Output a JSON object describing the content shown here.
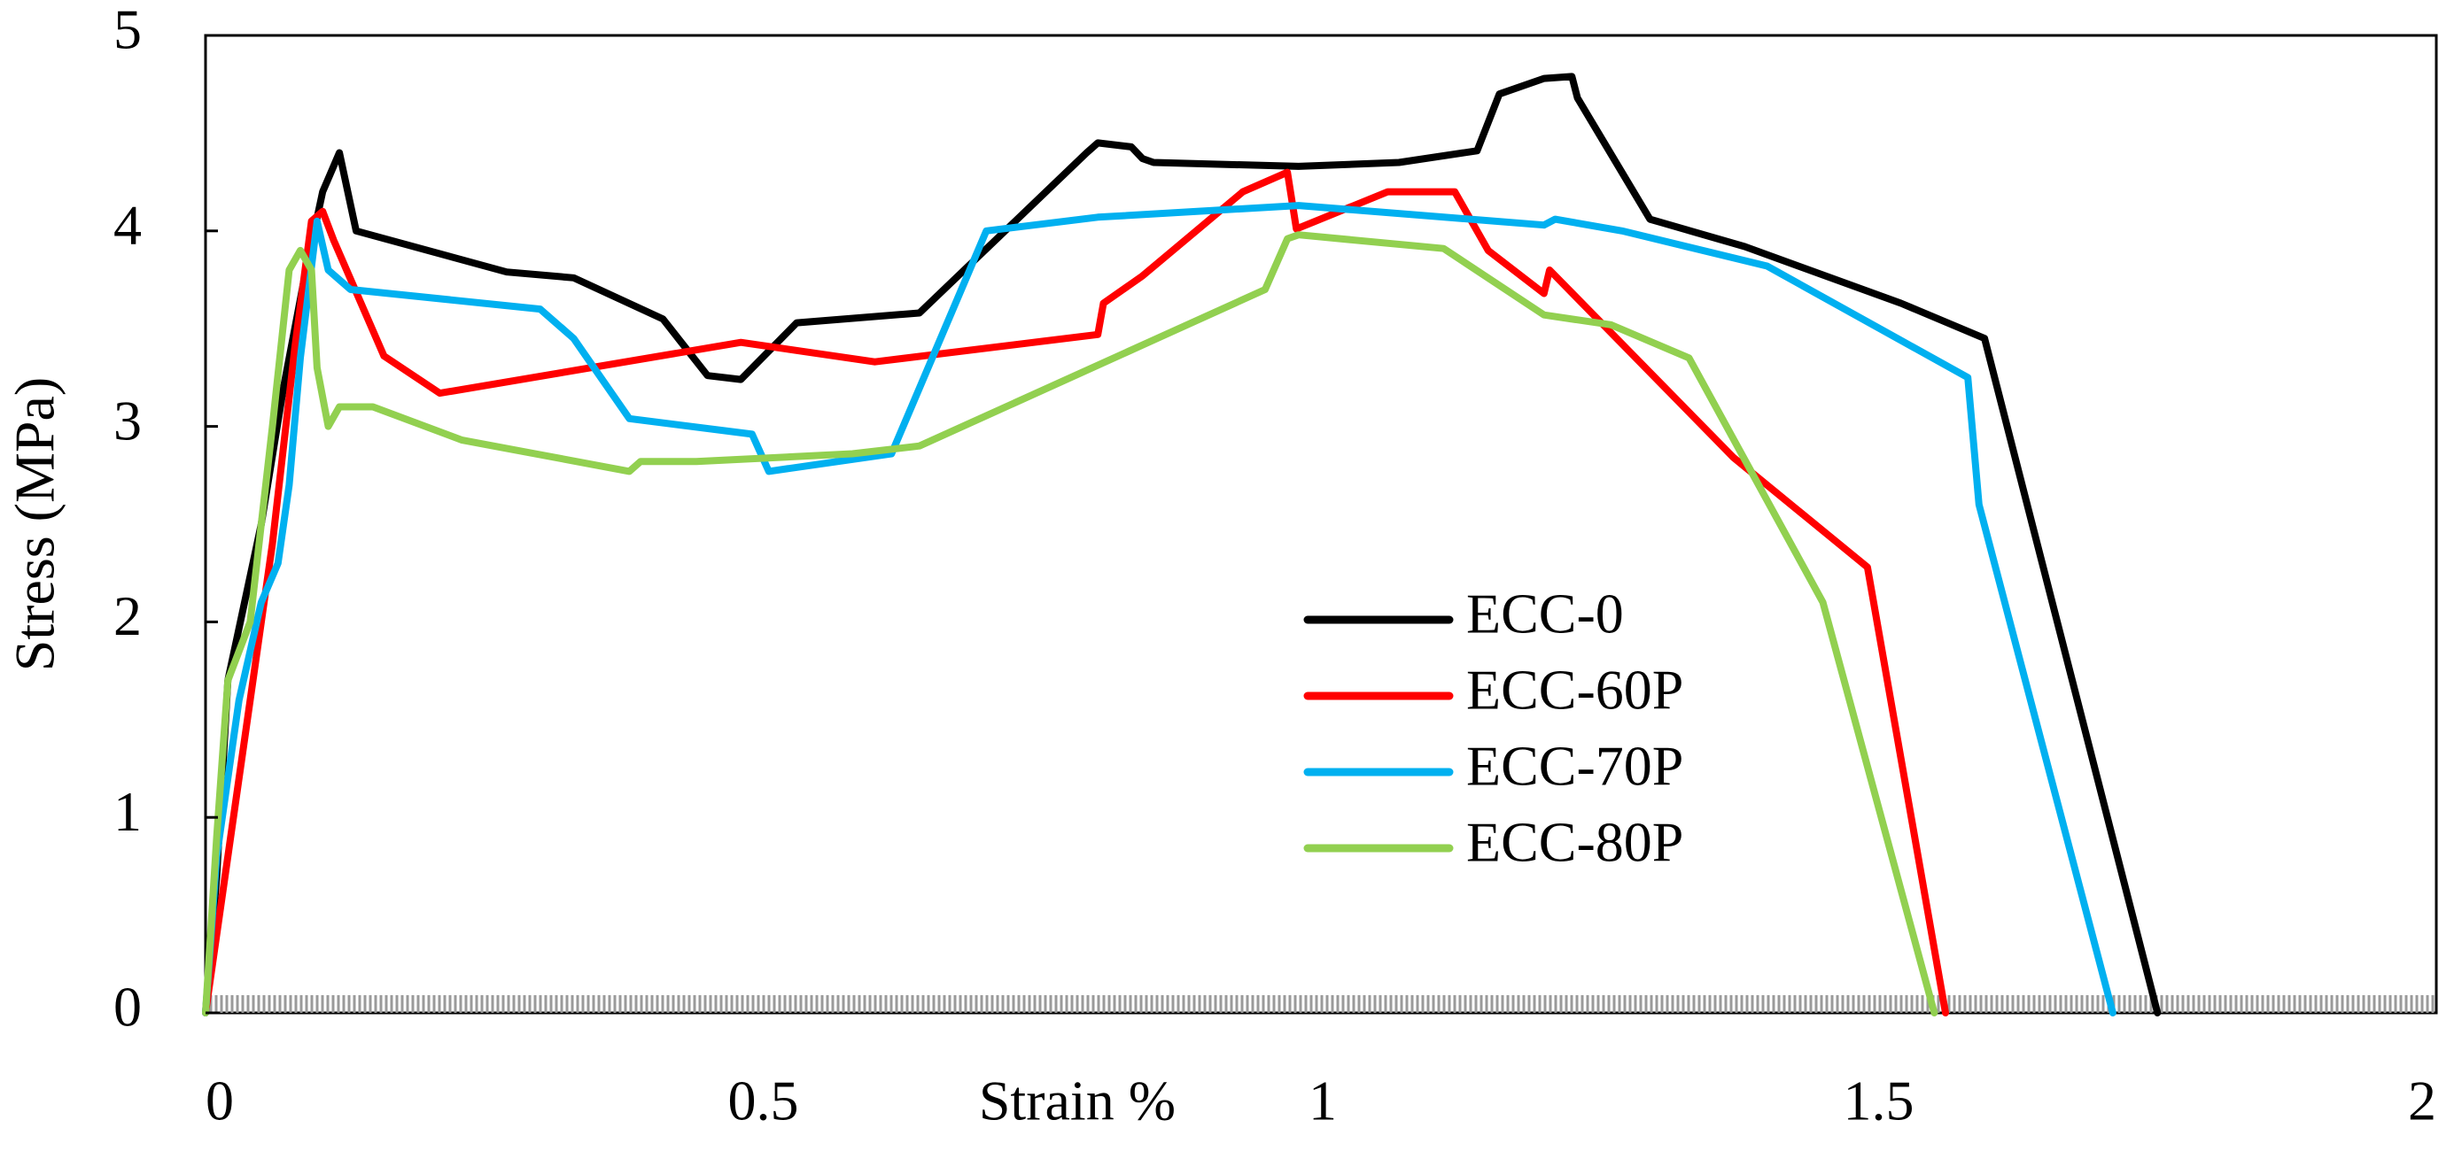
{
  "chart_data": {
    "type": "line",
    "title": "",
    "xlabel": "Strain %",
    "ylabel": "Stress (MPa)",
    "xlim": [
      0,
      2
    ],
    "ylim": [
      0,
      5
    ],
    "x_ticks": [
      "0",
      "0.5",
      "1",
      "1.5",
      "2"
    ],
    "y_ticks": [
      "0",
      "1",
      "2",
      "3",
      "4",
      "5"
    ],
    "grid": false,
    "legend": "center-right",
    "series": [
      {
        "name": "ECC-0",
        "color": "#000000",
        "points": [
          [
            0,
            0
          ],
          [
            0.01,
            0.7
          ],
          [
            0.02,
            1.7
          ],
          [
            0.05,
            2.5
          ],
          [
            0.07,
            3.2
          ],
          [
            0.09,
            3.8
          ],
          [
            0.105,
            4.2
          ],
          [
            0.12,
            4.4
          ],
          [
            0.135,
            4.0
          ],
          [
            0.27,
            3.79
          ],
          [
            0.33,
            3.76
          ],
          [
            0.41,
            3.55
          ],
          [
            0.45,
            3.26
          ],
          [
            0.48,
            3.24
          ],
          [
            0.53,
            3.53
          ],
          [
            0.64,
            3.58
          ],
          [
            0.79,
            4.4
          ],
          [
            0.8,
            4.45
          ],
          [
            0.83,
            4.43
          ],
          [
            0.84,
            4.37
          ],
          [
            0.85,
            4.35
          ],
          [
            0.98,
            4.33
          ],
          [
            1.07,
            4.35
          ],
          [
            1.14,
            4.41
          ],
          [
            1.16,
            4.7
          ],
          [
            1.2,
            4.78
          ],
          [
            1.225,
            4.79
          ],
          [
            1.23,
            4.68
          ],
          [
            1.295,
            4.06
          ],
          [
            1.38,
            3.92
          ],
          [
            1.52,
            3.63
          ],
          [
            1.595,
            3.45
          ],
          [
            1.75,
            0
          ]
        ]
      },
      {
        "name": "ECC-60P",
        "color": "#ff0000",
        "points": [
          [
            0,
            0
          ],
          [
            0.02,
            0.8
          ],
          [
            0.04,
            1.6
          ],
          [
            0.06,
            2.4
          ],
          [
            0.08,
            3.4
          ],
          [
            0.095,
            4.05
          ],
          [
            0.105,
            4.1
          ],
          [
            0.115,
            3.95
          ],
          [
            0.16,
            3.36
          ],
          [
            0.21,
            3.17
          ],
          [
            0.48,
            3.43
          ],
          [
            0.6,
            3.33
          ],
          [
            0.8,
            3.47
          ],
          [
            0.805,
            3.63
          ],
          [
            0.84,
            3.77
          ],
          [
            0.93,
            4.2
          ],
          [
            0.97,
            4.3
          ],
          [
            0.978,
            4.01
          ],
          [
            1.06,
            4.2
          ],
          [
            1.12,
            4.2
          ],
          [
            1.15,
            3.9
          ],
          [
            1.2,
            3.68
          ],
          [
            1.205,
            3.8
          ],
          [
            1.37,
            2.84
          ],
          [
            1.49,
            2.28
          ],
          [
            1.56,
            0
          ]
        ]
      },
      {
        "name": "ECC-70P",
        "color": "#00b0f0",
        "points": [
          [
            0,
            0
          ],
          [
            0.01,
            0.8
          ],
          [
            0.03,
            1.6
          ],
          [
            0.05,
            2.1
          ],
          [
            0.065,
            2.3
          ],
          [
            0.075,
            2.7
          ],
          [
            0.085,
            3.35
          ],
          [
            0.1,
            4.05
          ],
          [
            0.11,
            3.8
          ],
          [
            0.13,
            3.7
          ],
          [
            0.3,
            3.6
          ],
          [
            0.33,
            3.45
          ],
          [
            0.38,
            3.04
          ],
          [
            0.49,
            2.96
          ],
          [
            0.505,
            2.77
          ],
          [
            0.615,
            2.86
          ],
          [
            0.7,
            4.0
          ],
          [
            0.8,
            4.07
          ],
          [
            0.98,
            4.13
          ],
          [
            1.2,
            4.03
          ],
          [
            1.21,
            4.06
          ],
          [
            1.27,
            4.0
          ],
          [
            1.4,
            3.82
          ],
          [
            1.58,
            3.25
          ],
          [
            1.59,
            2.6
          ],
          [
            1.71,
            0
          ]
        ]
      },
      {
        "name": "ECC-80P",
        "color": "#92d050",
        "points": [
          [
            0,
            0
          ],
          [
            0.01,
            0.9
          ],
          [
            0.02,
            1.7
          ],
          [
            0.04,
            2.0
          ],
          [
            0.05,
            2.5
          ],
          [
            0.06,
            3.0
          ],
          [
            0.075,
            3.8
          ],
          [
            0.085,
            3.9
          ],
          [
            0.095,
            3.8
          ],
          [
            0.1,
            3.3
          ],
          [
            0.11,
            3.0
          ],
          [
            0.12,
            3.1
          ],
          [
            0.15,
            3.1
          ],
          [
            0.23,
            2.93
          ],
          [
            0.38,
            2.77
          ],
          [
            0.39,
            2.82
          ],
          [
            0.44,
            2.82
          ],
          [
            0.58,
            2.86
          ],
          [
            0.64,
            2.9
          ],
          [
            0.95,
            3.7
          ],
          [
            0.97,
            3.96
          ],
          [
            0.98,
            3.98
          ],
          [
            1.11,
            3.91
          ],
          [
            1.2,
            3.57
          ],
          [
            1.26,
            3.52
          ],
          [
            1.33,
            3.35
          ],
          [
            1.45,
            2.1
          ],
          [
            1.55,
            0
          ]
        ]
      }
    ]
  }
}
